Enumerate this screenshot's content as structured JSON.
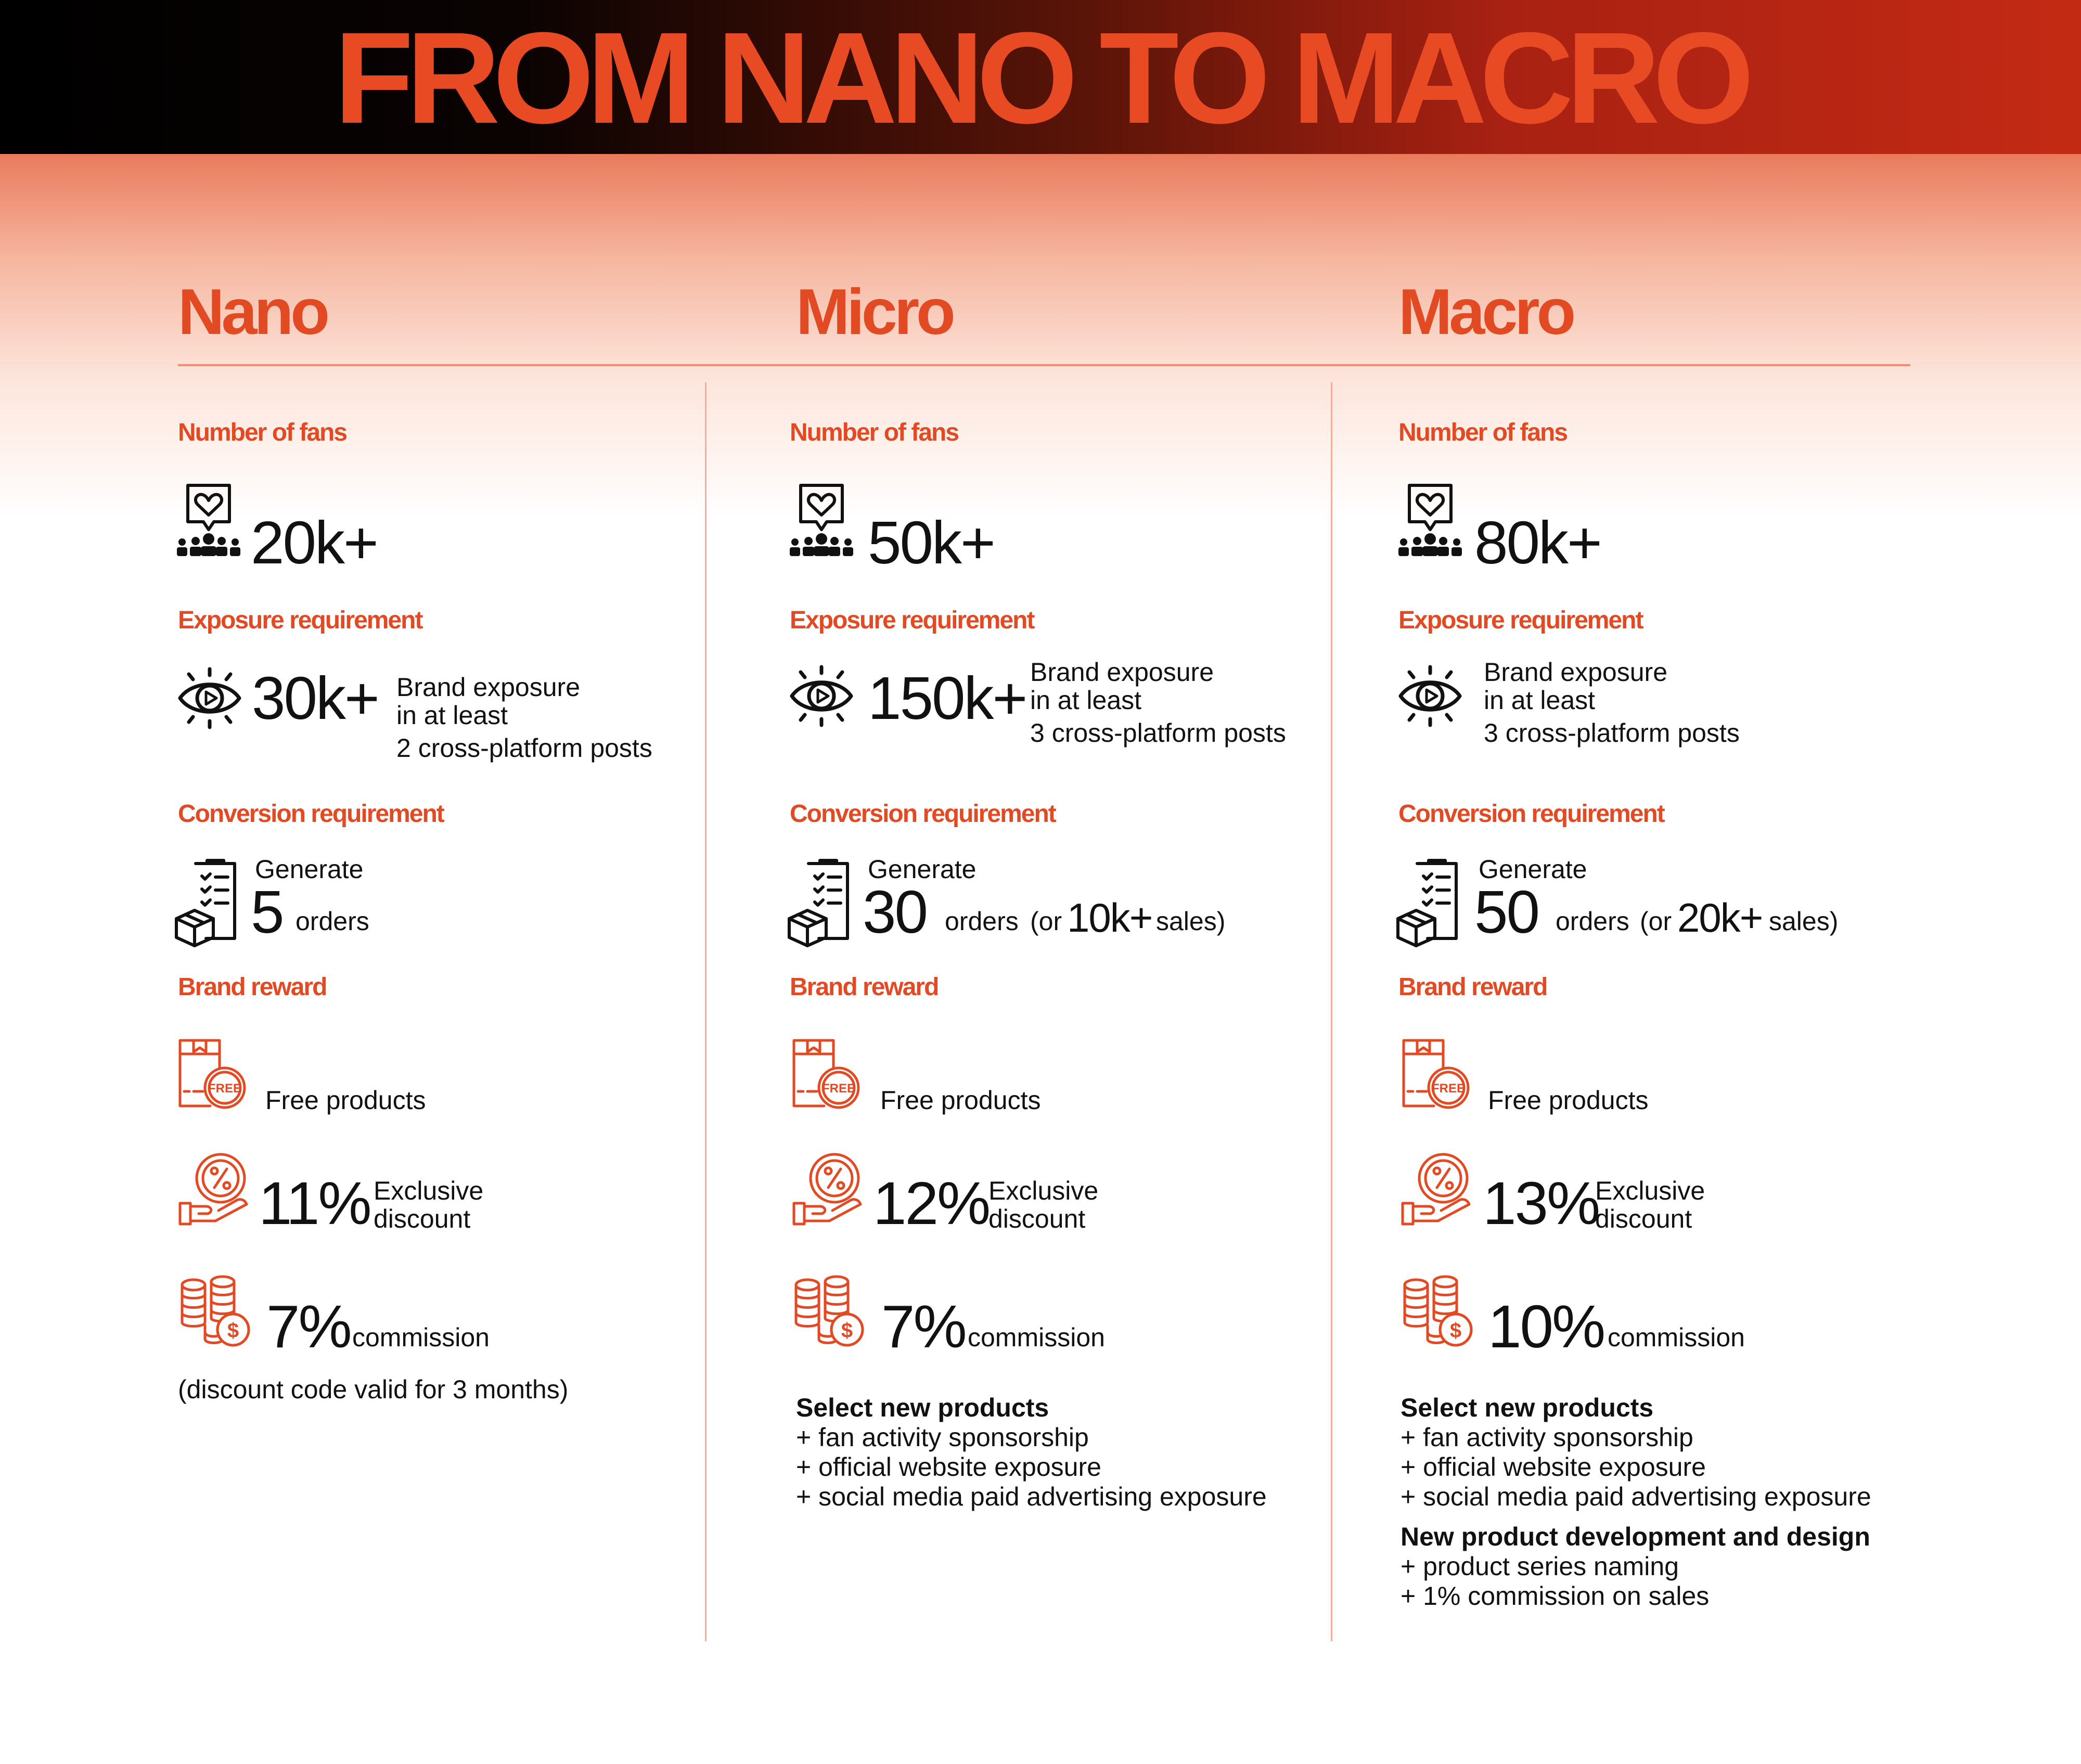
{
  "title": "FROM NANO TO MACRO",
  "section_labels": {
    "fans": "Number of fans",
    "exposure": "Exposure requirement",
    "conversion": "Conversion requirement",
    "reward": "Brand reward"
  },
  "colors": {
    "accent": "#e24a23",
    "title": "#e84a23",
    "text": "#111111"
  },
  "icons": {
    "fans": "fans-heart-icon",
    "exposure": "eye-play-icon",
    "conversion": "order-package-icon",
    "free": "free-product-box-icon",
    "discount": "discount-hand-icon",
    "commission": "coins-dollar-icon"
  },
  "columns": [
    {
      "name": "Nano",
      "fans": "20k+",
      "exposure_value": "30k+",
      "exposure_text": [
        "Brand exposure",
        "in at least",
        "2 cross-platform posts"
      ],
      "conversion_generate": "Generate",
      "conversion_value": "5",
      "conversion_orders": "orders",
      "conversion_or": "",
      "conversion_sales_value": "",
      "conversion_sales": "",
      "free_text": "Free  products",
      "discount_value": "11%",
      "discount_text": [
        "Exclusive",
        "discount"
      ],
      "commission_value": "7%",
      "commission_text": "commission",
      "note": "(discount code valid for 3 months)"
    },
    {
      "name": "Micro",
      "fans": "50k+",
      "exposure_value": "150k+",
      "exposure_text": [
        "Brand exposure",
        "in at least",
        "3 cross-platform posts"
      ],
      "conversion_generate": "Generate",
      "conversion_value": "30",
      "conversion_orders": "orders",
      "conversion_or": "(or",
      "conversion_sales_value": "10k+",
      "conversion_sales": "sales)",
      "free_text": "Free  products",
      "discount_value": "12%",
      "discount_text": [
        "Exclusive",
        "discount"
      ],
      "commission_value": "7%",
      "commission_text": "commission",
      "extras": [
        {
          "heading": "Select new products",
          "items": [
            "+ fan activity sponsorship",
            "+ official website exposure",
            "+ social media paid advertising exposure"
          ]
        }
      ]
    },
    {
      "name": "Macro",
      "fans": "80k+",
      "exposure_value": "",
      "exposure_text": [
        "Brand exposure",
        "in at least",
        "3 cross-platform posts"
      ],
      "conversion_generate": "Generate",
      "conversion_value": "50",
      "conversion_orders": "orders",
      "conversion_or": "(or",
      "conversion_sales_value": "20k+",
      "conversion_sales": "sales)",
      "free_text": "Free  products",
      "discount_value": "13%",
      "discount_text": [
        "Exclusive",
        "discount"
      ],
      "commission_value": "10%",
      "commission_text": "commission",
      "extras": [
        {
          "heading": "Select new products",
          "items": [
            "+ fan activity sponsorship",
            "+ official website exposure",
            "+ social media paid advertising exposure"
          ]
        },
        {
          "heading": "New product development and design",
          "items": [
            "+ product series naming",
            "+ 1% commission on sales"
          ]
        }
      ]
    }
  ]
}
